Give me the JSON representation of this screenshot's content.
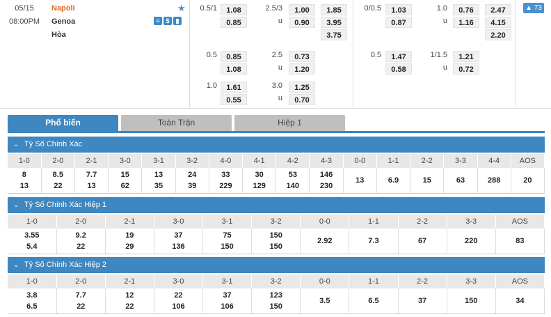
{
  "match": {
    "date": "05/15",
    "time": "08:00PM",
    "home": "Napoli",
    "away": "Genoa",
    "draw": "Hòa",
    "more_count": "▲ 73"
  },
  "odds_left": {
    "handicap": [
      {
        "line": "0.5/1",
        "home": "1.08",
        "away": "0.85"
      },
      {
        "line": "0.5",
        "home": "0.85",
        "away": "1.08"
      },
      {
        "line": "1.0",
        "home": "1.61",
        "away": "0.55"
      }
    ],
    "ou": [
      {
        "line": "2.5/3",
        "u": "u",
        "over": "1.00",
        "under": "0.90"
      },
      {
        "line": "2.5",
        "u": "u",
        "over": "0.73",
        "under": "1.20"
      },
      {
        "line": "3.0",
        "u": "u",
        "over": "1.25",
        "under": "0.70"
      }
    ],
    "x12": [
      "1.85",
      "3.95",
      "3.75"
    ]
  },
  "odds_right": {
    "handicap": [
      {
        "line": "0/0.5",
        "home": "1.03",
        "away": "0.87"
      },
      {
        "line": "0.5",
        "home": "1.47",
        "away": "0.58"
      }
    ],
    "ou": [
      {
        "line": "1.0",
        "u": "u",
        "over": "0.76",
        "under": "1.16"
      },
      {
        "line": "1/1.5",
        "u": "u",
        "over": "1.21",
        "under": "0.72"
      }
    ],
    "x12": [
      "2.47",
      "4.15",
      "2.20"
    ]
  },
  "tabs": [
    "Phổ biến",
    "Toàn Trận",
    "Hiệp 1"
  ],
  "sections": {
    "full": {
      "title": "Tỷ Số Chính Xác",
      "headers": [
        "1-0",
        "2-0",
        "2-1",
        "3-0",
        "3-1",
        "3-2",
        "4-0",
        "4-1",
        "4-2",
        "4-3",
        "0-0",
        "1-1",
        "2-2",
        "3-3",
        "4-4",
        "AOS"
      ],
      "top": [
        "8",
        "8.5",
        "7.7",
        "15",
        "13",
        "24",
        "33",
        "30",
        "53",
        "146",
        "13",
        "6.9",
        "15",
        "63",
        "288",
        "20"
      ],
      "bottom": [
        "13",
        "22",
        "13",
        "62",
        "35",
        "39",
        "229",
        "129",
        "140",
        "230",
        "",
        "",
        "",
        "",
        "",
        ""
      ]
    },
    "h1": {
      "title": "Tỷ Số Chính Xác Hiệp 1",
      "headers": [
        "1-0",
        "2-0",
        "2-1",
        "3-0",
        "3-1",
        "3-2",
        "0-0",
        "1-1",
        "2-2",
        "3-3",
        "AOS"
      ],
      "top": [
        "3.55",
        "9.2",
        "19",
        "37",
        "75",
        "150",
        "2.92",
        "7.3",
        "67",
        "220",
        "83"
      ],
      "bottom": [
        "5.4",
        "22",
        "29",
        "136",
        "150",
        "150",
        "",
        "",
        "",
        "",
        ""
      ]
    },
    "h2": {
      "title": "Tỷ Số Chính Xác Hiệp 2",
      "headers": [
        "1-0",
        "2-0",
        "2-1",
        "3-0",
        "3-1",
        "3-2",
        "0-0",
        "1-1",
        "2-2",
        "3-3",
        "AOS"
      ],
      "top": [
        "3.8",
        "7.7",
        "12",
        "22",
        "37",
        "123",
        "3.5",
        "6.5",
        "37",
        "150",
        "34"
      ],
      "bottom": [
        "6.5",
        "22",
        "22",
        "106",
        "106",
        "150",
        "",
        "",
        "",
        "",
        ""
      ]
    }
  }
}
